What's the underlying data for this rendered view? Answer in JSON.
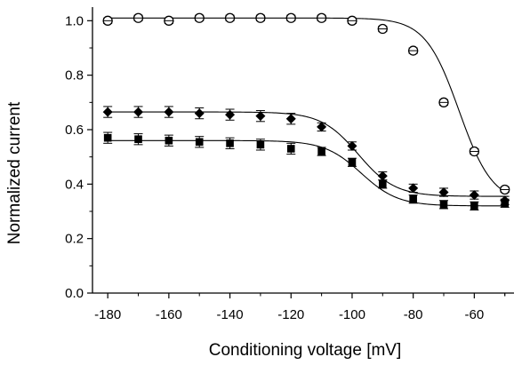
{
  "chart_data": {
    "type": "scatter",
    "title": "",
    "xlabel": "Conditioning voltage [mV]",
    "ylabel": "Normalized current",
    "xlim": [
      -185,
      -47
    ],
    "ylim": [
      0.0,
      1.05
    ],
    "xticks": [
      -180,
      -160,
      -140,
      -120,
      -100,
      -80,
      -60
    ],
    "yticks": [
      0.0,
      0.2,
      0.4,
      0.6,
      0.8,
      1.0
    ],
    "xtick_labels": [
      "-180",
      "-160",
      "-140",
      "-120",
      "-100",
      "-80",
      "-60"
    ],
    "ytick_labels": [
      "0.0",
      "0.2",
      "0.4",
      "0.6",
      "0.8",
      "1.0"
    ],
    "grid": false,
    "legend": false,
    "x": [
      -180,
      -170,
      -160,
      -150,
      -140,
      -130,
      -120,
      -110,
      -100,
      -90,
      -80,
      -70,
      -60,
      -50
    ],
    "series": [
      {
        "marker": "open-circle",
        "values": [
          1.0,
          1.01,
          1.0,
          1.01,
          1.01,
          1.01,
          1.01,
          1.01,
          1.0,
          0.97,
          0.89,
          0.7,
          0.52,
          0.38
        ],
        "errors": [
          0.01,
          0.01,
          0.01,
          0.01,
          0.01,
          0.01,
          0.01,
          0.01,
          0.01,
          0.01,
          0.01,
          0.01,
          0.01,
          0.01
        ],
        "fit": {
          "top": 1.01,
          "bottom": 0.33,
          "v_half": -65,
          "slope": 5.5
        }
      },
      {
        "marker": "filled-diamond",
        "values": [
          0.665,
          0.665,
          0.665,
          0.66,
          0.655,
          0.65,
          0.64,
          0.61,
          0.54,
          0.43,
          0.385,
          0.37,
          0.36,
          0.34
        ],
        "errors": [
          0.02,
          0.02,
          0.02,
          0.02,
          0.02,
          0.02,
          0.02,
          0.015,
          0.015,
          0.015,
          0.015,
          0.015,
          0.015,
          0.015
        ],
        "fit": {
          "top": 0.665,
          "bottom": 0.355,
          "v_half": -98,
          "slope": 6
        }
      },
      {
        "marker": "filled-square",
        "values": [
          0.57,
          0.565,
          0.56,
          0.555,
          0.55,
          0.545,
          0.53,
          0.52,
          0.48,
          0.4,
          0.345,
          0.325,
          0.32,
          0.33
        ],
        "errors": [
          0.02,
          0.02,
          0.02,
          0.02,
          0.02,
          0.02,
          0.02,
          0.015,
          0.015,
          0.015,
          0.015,
          0.015,
          0.015,
          0.015
        ],
        "fit": {
          "top": 0.56,
          "bottom": 0.32,
          "v_half": -97,
          "slope": 6
        }
      }
    ]
  }
}
